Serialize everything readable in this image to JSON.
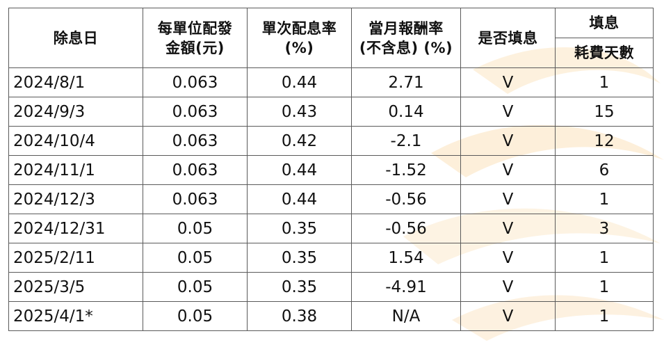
{
  "table": {
    "headers": {
      "ex_date": "除息日",
      "amount_line1": "每單位配發",
      "amount_line2": "金額(元)",
      "yield_line1": "單次配息率",
      "yield_line2": "(%)",
      "return_line1": "當月報酬率",
      "return_line2": "(不含息) (%)",
      "filled": "是否填息",
      "days_line1": "填息",
      "days_line2": "耗費天數"
    },
    "rows": [
      {
        "ex_date": "2024/8/1",
        "amount": "0.063",
        "yield": "0.44",
        "return": "2.71",
        "filled": "V",
        "days": "1"
      },
      {
        "ex_date": "2024/9/3",
        "amount": "0.063",
        "yield": "0.43",
        "return": "0.14",
        "filled": "V",
        "days": "15"
      },
      {
        "ex_date": "2024/10/4",
        "amount": "0.063",
        "yield": "0.42",
        "return": "-2.1",
        "filled": "V",
        "days": "12"
      },
      {
        "ex_date": "2024/11/1",
        "amount": "0.063",
        "yield": "0.44",
        "return": "-1.52",
        "filled": "V",
        "days": "6"
      },
      {
        "ex_date": "2024/12/3",
        "amount": "0.063",
        "yield": "0.44",
        "return": "-0.56",
        "filled": "V",
        "days": "1"
      },
      {
        "ex_date": "2024/12/31",
        "amount": "0.05",
        "yield": "0.35",
        "return": "-0.56",
        "filled": "V",
        "days": "3"
      },
      {
        "ex_date": "2025/2/11",
        "amount": "0.05",
        "yield": "0.35",
        "return": "1.54",
        "filled": "V",
        "days": "1"
      },
      {
        "ex_date": "2025/3/5",
        "amount": "0.05",
        "yield": "0.35",
        "return": "-4.91",
        "filled": "V",
        "days": "1"
      },
      {
        "ex_date": "2025/4/1*",
        "amount": "0.05",
        "yield": "0.38",
        "return": "N/A",
        "filled": "V",
        "days": "1"
      }
    ]
  },
  "colors": {
    "border": "#5a5a5a",
    "text": "#111111",
    "watermark": "#fbe3bf"
  }
}
